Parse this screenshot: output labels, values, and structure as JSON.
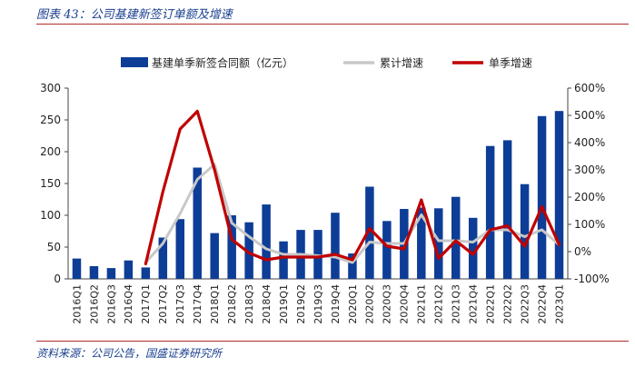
{
  "figure": {
    "title": "图表 43：公司基建新签订单额及增速",
    "source": "资料来源：公司公告，国盛证券研究所"
  },
  "chart_data": {
    "type": "bar",
    "categories": [
      "2016Q1",
      "2016Q2",
      "2016Q3",
      "2016Q4",
      "2017Q1",
      "2017Q2",
      "2017Q3",
      "2017Q4",
      "2018Q1",
      "2018Q2",
      "2018Q3",
      "2018Q4",
      "2019Q1",
      "2019Q2",
      "2019Q3",
      "2019Q4",
      "2020Q1",
      "2020Q2",
      "2020Q3",
      "2020Q4",
      "2021Q1",
      "2021Q2",
      "2021Q3",
      "2021Q4",
      "2022Q1",
      "2022Q2",
      "2022Q3",
      "2022Q4",
      "2023Q1"
    ],
    "left_axis": {
      "ylim": [
        0,
        300
      ],
      "ticks": [
        "0",
        "50",
        "100",
        "150",
        "200",
        "250",
        "300"
      ]
    },
    "right_axis": {
      "ylim": [
        -100,
        600
      ],
      "ticks": [
        "-100%",
        "0%",
        "100%",
        "200%",
        "300%",
        "400%",
        "500%",
        "600%"
      ]
    },
    "series": [
      {
        "name": "基建单季新签合同额（亿元）",
        "type": "bar",
        "axis": "left",
        "color": "#0d3d96",
        "values": [
          32,
          20,
          17,
          29,
          18,
          65,
          94,
          175,
          72,
          100,
          89,
          117,
          59,
          77,
          77,
          104,
          40,
          145,
          91,
          110,
          112,
          111,
          129,
          96,
          209,
          218,
          149,
          256,
          264
        ]
      },
      {
        "name": "累计增速",
        "type": "line",
        "axis": "right",
        "color": "#c8c8c8",
        "values": [
          null,
          null,
          null,
          null,
          -40,
          30,
          140,
          265,
          320,
          105,
          55,
          10,
          -10,
          -10,
          -15,
          -20,
          -40,
          35,
          30,
          30,
          135,
          40,
          40,
          35,
          80,
          80,
          55,
          80,
          25
        ]
      },
      {
        "name": "单季增速",
        "type": "line",
        "axis": "right",
        "color": "#c00000",
        "values": [
          null,
          null,
          null,
          null,
          -45,
          220,
          450,
          515,
          300,
          45,
          -5,
          -30,
          -20,
          -20,
          -20,
          -10,
          -30,
          85,
          20,
          10,
          190,
          -25,
          40,
          -10,
          80,
          95,
          20,
          165,
          25
        ]
      }
    ]
  }
}
